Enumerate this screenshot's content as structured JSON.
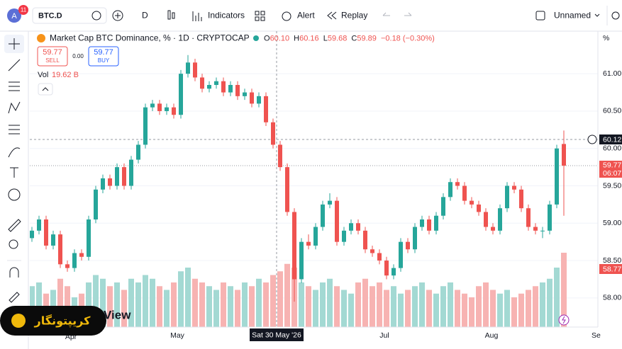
{
  "toolbar": {
    "avatar": "A",
    "badge": "11",
    "symbol": "BTC.D",
    "interval": "D",
    "indicators": "Indicators",
    "alert": "Alert",
    "replay": "Replay",
    "layout": "Unnamed"
  },
  "legend": {
    "title": "Market Cap BTC Dominance, % · 1D · CRYPTOCAP",
    "o_label": "O",
    "o": "60.10",
    "h_label": "H",
    "h": "60.16",
    "l_label": "L",
    "l": "59.68",
    "c_label": "C",
    "c": "59.89",
    "change": "−0.18 (−0.30%)"
  },
  "trade": {
    "sell_price": "59.77",
    "sell": "SELL",
    "spread": "0.00",
    "buy_price": "59.77",
    "buy": "BUY"
  },
  "volume_legend": {
    "label": "Vol",
    "value": "19.62 B"
  },
  "price_axis": {
    "unit": "%",
    "crosshair": "60.12",
    "last": "59.77",
    "countdown": "06:07",
    "low_mark": "58.77"
  },
  "time_axis": {
    "labels": [
      "Apr",
      "May",
      "Jul",
      "Aug",
      "Se"
    ],
    "crosshair": "Sat 30 May '26"
  },
  "watermark": "View",
  "logo": "کریپتونگار",
  "chart_data": {
    "type": "candlestick",
    "up_color": "#26a69a",
    "down_color": "#ef5350",
    "up_volume_color": "#a3d9d3",
    "down_volume_color": "#f7b3b2",
    "grid": true,
    "ylim": [
      57.61,
      61.57
    ],
    "yticks": [
      {
        "value": 58,
        "label": "58.00"
      },
      {
        "value": 58.5,
        "label": "58.50"
      },
      {
        "value": 59,
        "label": "59.00"
      },
      {
        "value": 59.5,
        "label": "59.50"
      },
      {
        "value": 60,
        "label": "60.00"
      },
      {
        "value": 60.5,
        "label": "60.50"
      },
      {
        "value": 61,
        "label": "61.00"
      }
    ],
    "open": [
      58.8,
      58.9,
      59.05,
      58.7,
      58.85,
      58.45,
      58.4,
      58.6,
      58.55,
      59.05,
      59.45,
      59.6,
      59.5,
      59.75,
      59.5,
      59.85,
      60.05,
      60.55,
      60.6,
      60.5,
      60.55,
      60.45,
      61.0,
      61.15,
      60.95,
      60.8,
      60.85,
      60.9,
      60.75,
      60.85,
      60.7,
      60.75,
      60.6,
      60.7,
      60.35,
      60.05,
      59.75,
      59.15,
      58.25,
      58.75,
      58.7,
      58.95,
      59.25,
      59.3,
      58.75,
      58.9,
      59.0,
      58.9,
      58.65,
      58.6,
      58.5,
      58.3,
      58.4,
      58.75,
      58.65,
      58.95,
      59.05,
      58.9,
      59.1,
      59.35,
      59.55,
      59.5,
      59.3,
      59.25,
      59.15,
      58.95,
      58.9,
      59.2,
      59.5,
      59.45,
      59.2,
      58.95,
      58.9,
      58.9,
      59.25,
      60.06
    ],
    "high": [
      58.95,
      59.1,
      59.1,
      58.9,
      58.9,
      58.5,
      58.65,
      58.65,
      59.1,
      59.5,
      59.65,
      59.65,
      59.8,
      59.8,
      59.9,
      60.1,
      60.6,
      60.65,
      60.65,
      60.6,
      60.6,
      61.05,
      61.25,
      61.2,
      61.0,
      60.9,
      60.95,
      60.95,
      60.9,
      60.9,
      60.8,
      60.8,
      60.75,
      60.75,
      60.4,
      60.1,
      59.8,
      59.2,
      58.8,
      58.85,
      59.0,
      59.3,
      59.4,
      59.35,
      58.95,
      59.05,
      59.05,
      58.95,
      58.7,
      58.65,
      58.55,
      58.45,
      58.8,
      58.8,
      59.0,
      59.1,
      59.1,
      59.15,
      59.4,
      59.6,
      59.6,
      59.55,
      59.35,
      59.3,
      59.2,
      59.0,
      59.25,
      59.55,
      59.55,
      59.5,
      59.25,
      59.0,
      58.95,
      59.3,
      60.05,
      60.24
    ],
    "low": [
      58.75,
      58.85,
      58.65,
      58.65,
      58.4,
      58.35,
      58.35,
      58.5,
      58.5,
      59.0,
      59.4,
      59.45,
      59.45,
      59.45,
      59.45,
      59.8,
      60.0,
      60.5,
      60.45,
      60.45,
      60.4,
      60.4,
      60.95,
      60.9,
      60.75,
      60.75,
      60.8,
      60.7,
      60.7,
      60.65,
      60.65,
      60.55,
      60.55,
      60.3,
      60.0,
      59.7,
      59.1,
      57.95,
      58.2,
      58.65,
      58.65,
      58.9,
      59.2,
      58.7,
      58.7,
      58.85,
      58.85,
      58.6,
      58.55,
      58.45,
      58.25,
      58.25,
      58.35,
      58.6,
      58.6,
      58.9,
      58.85,
      58.85,
      59.05,
      59.3,
      59.45,
      59.25,
      59.2,
      59.1,
      58.9,
      58.85,
      58.85,
      59.15,
      59.4,
      59.15,
      58.9,
      58.85,
      58.8,
      58.85,
      59.2,
      59.1
    ],
    "close": [
      58.9,
      59.05,
      58.7,
      58.85,
      58.45,
      58.4,
      58.6,
      58.55,
      59.05,
      59.45,
      59.6,
      59.5,
      59.75,
      59.5,
      59.85,
      60.05,
      60.55,
      60.6,
      60.5,
      60.55,
      60.45,
      61.0,
      61.15,
      60.95,
      60.8,
      60.85,
      60.9,
      60.75,
      60.85,
      60.7,
      60.75,
      60.6,
      60.7,
      60.35,
      60.05,
      59.75,
      59.15,
      58.25,
      58.75,
      58.7,
      58.95,
      59.25,
      59.3,
      58.75,
      58.9,
      59.0,
      58.9,
      58.65,
      58.6,
      58.5,
      58.3,
      58.4,
      58.75,
      58.65,
      58.95,
      59.05,
      58.9,
      59.1,
      59.35,
      59.55,
      59.5,
      59.3,
      59.25,
      59.15,
      58.95,
      58.9,
      59.2,
      59.5,
      59.45,
      59.2,
      58.95,
      58.9,
      58.9,
      59.25,
      60.0,
      59.77
    ],
    "volume": [
      11,
      12,
      9,
      10,
      13,
      11,
      8,
      9,
      12,
      14,
      13,
      11,
      12,
      10,
      13,
      12,
      14,
      13,
      11,
      10,
      12,
      15,
      16,
      13,
      12,
      11,
      10,
      12,
      11,
      10,
      12,
      11,
      13,
      12,
      14,
      15,
      17,
      16,
      12,
      11,
      10,
      12,
      13,
      11,
      10,
      9,
      12,
      13,
      11,
      12,
      10,
      11,
      9,
      10,
      11,
      12,
      10,
      9,
      11,
      12,
      10,
      9,
      8,
      11,
      12,
      10,
      9,
      10,
      8,
      9,
      10,
      11,
      12,
      13,
      16,
      20
    ]
  }
}
